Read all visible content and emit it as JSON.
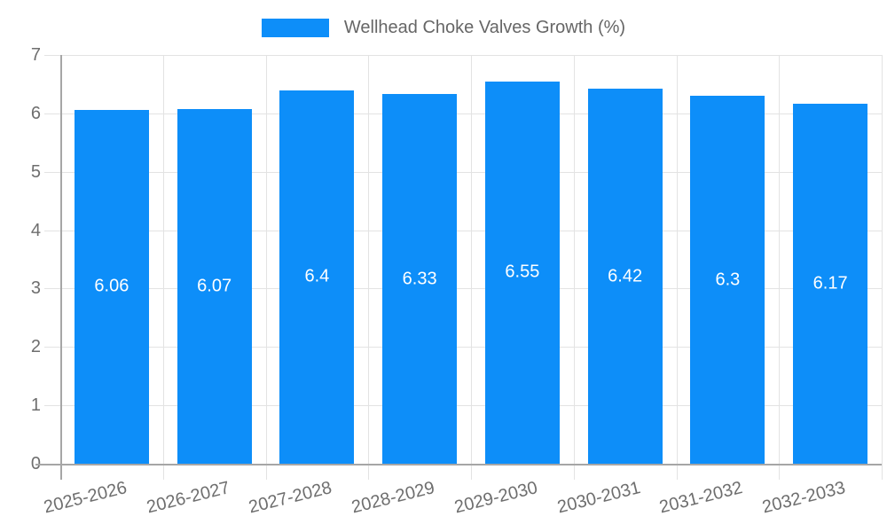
{
  "legend": {
    "label": "Wellhead Choke Valves Growth (%)"
  },
  "chart_data": {
    "type": "bar",
    "title": "",
    "xlabel": "",
    "ylabel": "",
    "categories": [
      "2025-2026",
      "2026-2027",
      "2027-2028",
      "2028-2029",
      "2029-2030",
      "2030-2031",
      "2031-2032",
      "2032-2033"
    ],
    "series": [
      {
        "name": "Wellhead Choke Valves Growth (%)",
        "values": [
          6.06,
          6.07,
          6.4,
          6.33,
          6.55,
          6.42,
          6.3,
          6.17
        ]
      }
    ],
    "value_labels": [
      "6.06",
      "6.07",
      "6.4",
      "6.33",
      "6.55",
      "6.42",
      "6.3",
      "6.17"
    ],
    "ylim": [
      0,
      7
    ],
    "yticks": [
      0,
      1,
      2,
      3,
      4,
      5,
      6,
      7
    ],
    "grid": true,
    "legend_position": "top",
    "x_tick_rotation_deg": -14
  },
  "colors": {
    "bar": "#0d8ef9",
    "grid": "#e3e3e3",
    "axis": "#a6a6a6",
    "tick_text": "#6e6e6e",
    "legend_text": "#666666",
    "value_text": "#ffffff",
    "background": "#ffffff"
  }
}
